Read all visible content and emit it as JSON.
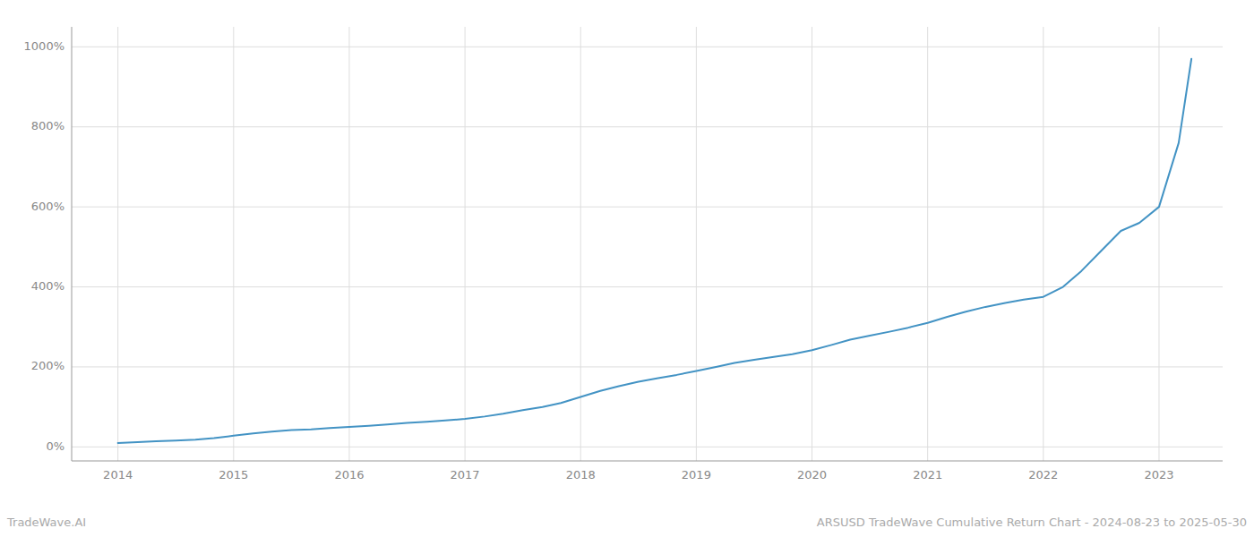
{
  "chart_data": {
    "type": "line",
    "title": "ARSUSD TradeWave Cumulative Return Chart - 2024-08-23 to 2025-05-30",
    "annotations": [
      "TradeWave.AI"
    ],
    "color": "#4393c4",
    "grid": true,
    "xlim": [
      2013.6,
      2023.55
    ],
    "ylim": [
      -35,
      1050
    ],
    "xticks": [
      2014,
      2015,
      2016,
      2017,
      2018,
      2019,
      2020,
      2021,
      2022,
      2023
    ],
    "yticks": [
      {
        "value": 0,
        "label": "0%"
      },
      {
        "value": 200,
        "label": "200%"
      },
      {
        "value": 400,
        "label": "400%"
      },
      {
        "value": 600,
        "label": "600%"
      },
      {
        "value": 800,
        "label": "800%"
      },
      {
        "value": 1000,
        "label": "1000%"
      }
    ],
    "x": [
      2014.0,
      2014.17,
      2014.33,
      2014.5,
      2014.67,
      2014.83,
      2015.0,
      2015.17,
      2015.33,
      2015.5,
      2015.67,
      2015.83,
      2016.0,
      2016.17,
      2016.33,
      2016.5,
      2016.67,
      2016.83,
      2017.0,
      2017.17,
      2017.33,
      2017.5,
      2017.67,
      2017.83,
      2018.0,
      2018.17,
      2018.33,
      2018.5,
      2018.67,
      2018.83,
      2019.0,
      2019.17,
      2019.33,
      2019.5,
      2019.67,
      2019.83,
      2020.0,
      2020.17,
      2020.33,
      2020.5,
      2020.67,
      2020.83,
      2021.0,
      2021.17,
      2021.33,
      2021.5,
      2021.67,
      2021.83,
      2022.0,
      2022.17,
      2022.33,
      2022.5,
      2022.67,
      2022.83,
      2023.0,
      2023.17,
      2023.28
    ],
    "values": [
      10,
      12,
      14,
      16,
      18,
      22,
      28,
      34,
      38,
      42,
      44,
      47,
      50,
      53,
      56,
      60,
      63,
      66,
      70,
      76,
      83,
      92,
      100,
      110,
      125,
      140,
      152,
      163,
      172,
      180,
      190,
      200,
      210,
      218,
      225,
      232,
      242,
      255,
      268,
      278,
      288,
      298,
      310,
      325,
      338,
      350,
      360,
      368,
      375,
      400,
      440,
      490,
      540,
      560,
      600,
      760,
      970
    ]
  }
}
